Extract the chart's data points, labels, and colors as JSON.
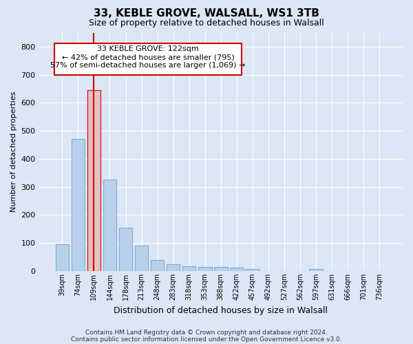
{
  "title": "33, KEBLE GROVE, WALSALL, WS1 3TB",
  "subtitle": "Size of property relative to detached houses in Walsall",
  "xlabel": "Distribution of detached houses by size in Walsall",
  "ylabel": "Number of detached properties",
  "footer_line1": "Contains HM Land Registry data © Crown copyright and database right 2024.",
  "footer_line2": "Contains public sector information licensed under the Open Government Licence v3.0.",
  "categories": [
    "39sqm",
    "74sqm",
    "109sqm",
    "144sqm",
    "178sqm",
    "213sqm",
    "248sqm",
    "283sqm",
    "318sqm",
    "353sqm",
    "388sqm",
    "422sqm",
    "457sqm",
    "492sqm",
    "527sqm",
    "562sqm",
    "597sqm",
    "631sqm",
    "666sqm",
    "701sqm",
    "736sqm"
  ],
  "values": [
    95,
    470,
    645,
    325,
    155,
    90,
    38,
    25,
    18,
    15,
    15,
    12,
    8,
    0,
    0,
    0,
    8,
    0,
    0,
    0,
    0
  ],
  "bar_color": "#b8d0ea",
  "bar_edge_color": "#7aadd4",
  "highlight_bar_index": 2,
  "highlight_color": "#e8c0c0",
  "highlight_edge_color": "#cc0000",
  "vline_x": 2,
  "vline_color": "#cc0000",
  "annotation_title": "33 KEBLE GROVE: 122sqm",
  "annotation_line1": "← 42% of detached houses are smaller (795)",
  "annotation_line2": "57% of semi-detached houses are larger (1,069) →",
  "annotation_box_color": "#cc0000",
  "ylim": [
    0,
    850
  ],
  "yticks": [
    0,
    100,
    200,
    300,
    400,
    500,
    600,
    700,
    800
  ],
  "bg_color": "#dce6f5",
  "plot_bg_color": "#dce6f5",
  "grid_color": "#ffffff",
  "figsize": [
    6.0,
    5.0
  ],
  "dpi": 100
}
